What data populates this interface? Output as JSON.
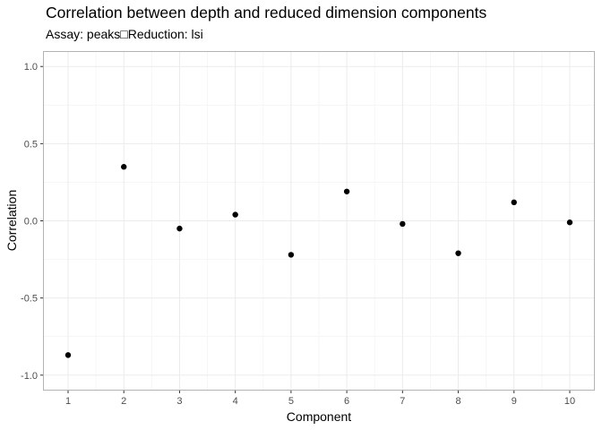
{
  "chart_data": {
    "type": "scatter",
    "title": "Correlation between depth and reduced dimension components",
    "subtitle": "Assay: peaks□Reduction: lsi",
    "xlabel": "Component",
    "ylabel": "Correlation",
    "x": [
      1,
      2,
      3,
      4,
      5,
      6,
      7,
      8,
      9,
      10
    ],
    "y": [
      -0.87,
      0.35,
      -0.05,
      0.04,
      -0.22,
      0.19,
      -0.02,
      -0.21,
      0.12,
      -0.01
    ],
    "xticks": [
      "1",
      "2",
      "3",
      "4",
      "5",
      "6",
      "7",
      "8",
      "9",
      "10"
    ],
    "yticks": [
      "1.0",
      "0.5",
      "0.0",
      "-0.5",
      "-1.0"
    ],
    "ytick_values": [
      1.0,
      0.5,
      0.0,
      -0.5,
      -1.0
    ],
    "ylim": [
      -1.0,
      1.0
    ],
    "xlim": [
      1,
      10
    ],
    "grid": true,
    "theme": "light",
    "point_color": "#000000",
    "grid_major_color": "#ebebeb",
    "grid_minor_color": "#f4f4f4",
    "panel_border_color": "#b3b3b3"
  }
}
